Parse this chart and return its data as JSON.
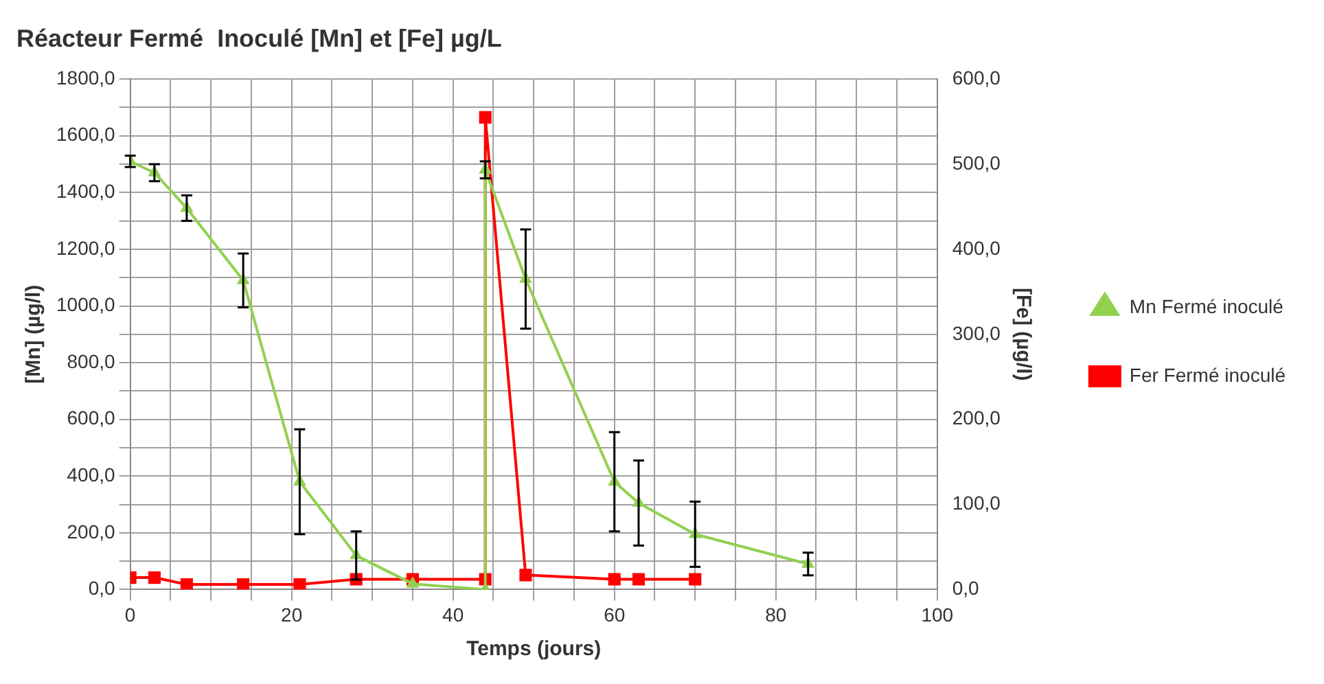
{
  "chart_data": {
    "type": "line",
    "title": "Réacteur Fermé  Inoculé [Mn] et [Fe] µg/L",
    "xlabel": "Temps (jours)",
    "ylabel": "[Mn] (µg/l)",
    "y2label": "[Fe] (µg/l)",
    "xlim": [
      0,
      100
    ],
    "xticks": [
      0,
      {
        "value": 5,
        "label": null
      },
      {
        "value": 10,
        "label": null
      },
      {
        "value": 15,
        "label": null
      },
      20,
      {
        "value": 25,
        "label": null
      },
      {
        "value": 30,
        "label": null
      },
      {
        "value": 35,
        "label": null
      },
      40,
      {
        "value": 45,
        "label": null
      },
      {
        "value": 50,
        "label": null
      },
      {
        "value": 55,
        "label": null
      },
      60,
      {
        "value": 65,
        "label": null
      },
      {
        "value": 70,
        "label": null
      },
      {
        "value": 75,
        "label": null
      },
      80,
      {
        "value": 85,
        "label": null
      },
      {
        "value": 90,
        "label": null
      },
      {
        "value": 95,
        "label": null
      },
      100
    ],
    "ylim": [
      0,
      1800
    ],
    "yticks": [
      {
        "value": 0,
        "label": "0,0"
      },
      {
        "value": 100,
        "label": null
      },
      {
        "value": 200,
        "label": "200,0"
      },
      {
        "value": 300,
        "label": null
      },
      {
        "value": 400,
        "label": "400,0"
      },
      {
        "value": 500,
        "label": null
      },
      {
        "value": 600,
        "label": "600,0"
      },
      {
        "value": 700,
        "label": null
      },
      {
        "value": 800,
        "label": "800,0"
      },
      {
        "value": 900,
        "label": null
      },
      {
        "value": 1000,
        "label": "1000,0"
      },
      {
        "value": 1100,
        "label": null
      },
      {
        "value": 1200,
        "label": "1200,0"
      },
      {
        "value": 1300,
        "label": null
      },
      {
        "value": 1400,
        "label": "1400,0"
      },
      {
        "value": 1500,
        "label": null
      },
      {
        "value": 1600,
        "label": "1600,0"
      },
      {
        "value": 1700,
        "label": null
      },
      {
        "value": 1800,
        "label": "1800,0"
      }
    ],
    "y2lim": [
      0,
      600
    ],
    "y2ticks": [
      {
        "value": 0,
        "label": "0,0"
      },
      {
        "value": 100,
        "label": "100,0"
      },
      {
        "value": 200,
        "label": "200,0"
      },
      {
        "value": 300,
        "label": "300,0"
      },
      {
        "value": 400,
        "label": "400,0"
      },
      {
        "value": 500,
        "label": "500,0"
      },
      {
        "value": 600,
        "label": "600,0"
      }
    ],
    "grid": true,
    "legend": "right",
    "series": [
      {
        "name": "Mn Fermé inoculé",
        "color": "#92d050",
        "marker": "triangle",
        "x": [
          0,
          3,
          7,
          14,
          21,
          28,
          35,
          44,
          44,
          49,
          60,
          63,
          70,
          84
        ],
        "values": [
          1510,
          1470,
          1345,
          1090,
          380,
          120,
          20,
          0,
          1480,
          1095,
          380,
          305,
          195,
          90
        ],
        "errors": [
          20,
          30,
          45,
          95,
          185,
          85,
          null,
          null,
          30,
          175,
          175,
          150,
          115,
          40
        ]
      },
      {
        "name": "Fer Fermé inoculé",
        "color": "#ff0000",
        "marker": "square",
        "axis": "y2",
        "x": [
          0,
          3,
          7,
          14,
          21,
          28,
          35,
          44,
          44,
          49,
          60,
          63,
          70
        ],
        "values": [
          14,
          14,
          6,
          6,
          6,
          12,
          12,
          12,
          555,
          17,
          12,
          12,
          12
        ]
      }
    ]
  }
}
